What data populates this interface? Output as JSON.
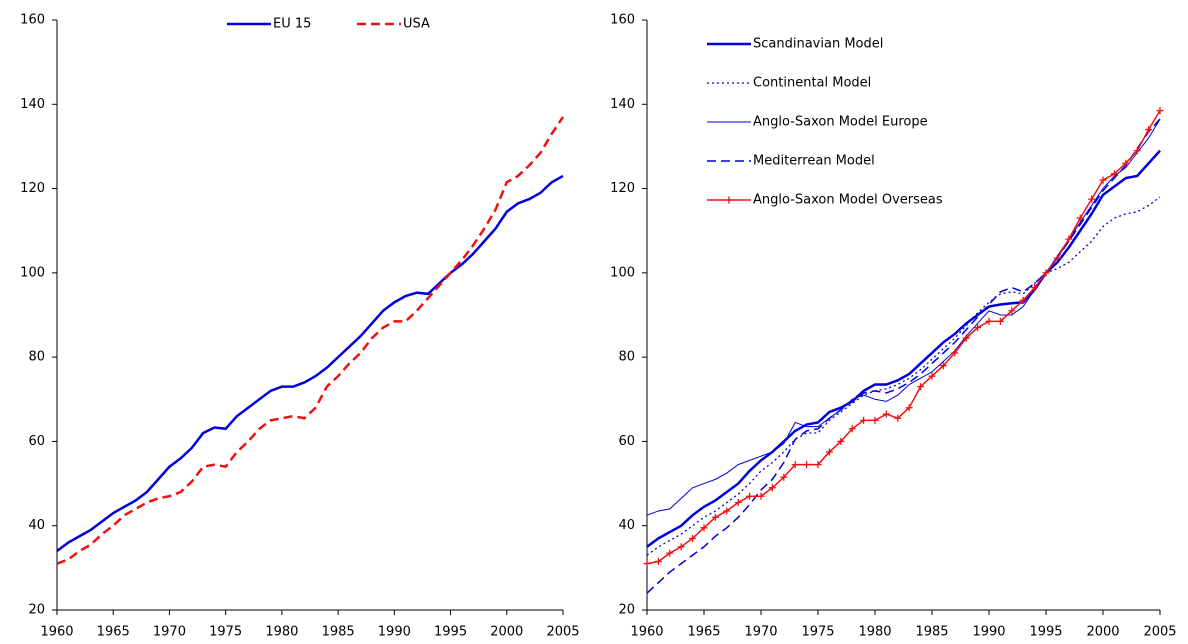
{
  "chart_data": [
    {
      "type": "line",
      "x": [
        1960,
        1961,
        1962,
        1963,
        1964,
        1965,
        1966,
        1967,
        1968,
        1969,
        1970,
        1971,
        1972,
        1973,
        1974,
        1975,
        1976,
        1977,
        1978,
        1979,
        1980,
        1981,
        1982,
        1983,
        1984,
        1985,
        1986,
        1987,
        1988,
        1989,
        1990,
        1991,
        1992,
        1993,
        1994,
        1995,
        1996,
        1997,
        1998,
        1999,
        2000,
        2001,
        2002,
        2003,
        2004,
        2005
      ],
      "xlim": [
        1960,
        2005
      ],
      "xticks": [
        1960,
        1965,
        1970,
        1975,
        1980,
        1985,
        1990,
        1995,
        2000,
        2005
      ],
      "ylim": [
        20,
        160
      ],
      "yticks": [
        20,
        40,
        60,
        80,
        100,
        120,
        140,
        160
      ],
      "legend": "top-center",
      "series": [
        {
          "name": "EU 15",
          "color": "#0000dd",
          "width": 2.5,
          "dash": "solid",
          "values": [
            34,
            36,
            37.5,
            39,
            41,
            43,
            44.5,
            46,
            48,
            51,
            54,
            56,
            58.5,
            62,
            63.3,
            63,
            66,
            68,
            70,
            72,
            73,
            73,
            74,
            75.5,
            77.5,
            80,
            82.5,
            85,
            88,
            91,
            93,
            94.5,
            95.3,
            95,
            97.5,
            100,
            102,
            104.5,
            107.5,
            110.5,
            114.5,
            116.5,
            117.5,
            119,
            121.5,
            123
          ]
        },
        {
          "name": "USA",
          "color": "#ee1111",
          "width": 2.5,
          "dash": "dashed",
          "values": [
            31,
            32,
            34,
            35.5,
            38,
            40,
            42.5,
            44,
            45.5,
            46.5,
            47,
            48,
            50.5,
            54,
            54.5,
            54,
            57.5,
            60,
            63,
            65,
            65.5,
            66,
            65.5,
            68,
            73,
            75.5,
            78.5,
            81,
            84.5,
            87,
            88.5,
            88.5,
            91,
            94,
            97,
            100,
            103,
            106.5,
            110.5,
            115,
            121.5,
            123,
            125.5,
            128.5,
            133,
            137
          ]
        }
      ]
    },
    {
      "type": "line",
      "x": [
        1960,
        1961,
        1962,
        1963,
        1964,
        1965,
        1966,
        1967,
        1968,
        1969,
        1970,
        1971,
        1972,
        1973,
        1974,
        1975,
        1976,
        1977,
        1978,
        1979,
        1980,
        1981,
        1982,
        1983,
        1984,
        1985,
        1986,
        1987,
        1988,
        1989,
        1990,
        1991,
        1992,
        1993,
        1994,
        1995,
        1996,
        1997,
        1998,
        1999,
        2000,
        2001,
        2002,
        2003,
        2004,
        2005
      ],
      "xlim": [
        1960,
        2005
      ],
      "xticks": [
        1960,
        1965,
        1970,
        1975,
        1980,
        1985,
        1990,
        1995,
        2000,
        2005
      ],
      "ylim": [
        20,
        160
      ],
      "yticks": [
        20,
        40,
        60,
        80,
        100,
        120,
        140,
        160
      ],
      "legend": "top-left",
      "series": [
        {
          "name": "Scandinavian Model",
          "color": "#0000dd",
          "width": 2.5,
          "dash": "solid",
          "values": [
            35,
            37,
            38.5,
            40,
            42.5,
            44.5,
            46,
            48,
            50,
            53,
            55.5,
            57.5,
            60,
            62.5,
            64,
            64.5,
            67,
            68,
            69.5,
            72,
            73.5,
            73.5,
            74.5,
            76,
            78.5,
            81,
            83.5,
            85.5,
            88,
            90,
            92,
            92.5,
            92.8,
            93,
            96,
            100,
            102.5,
            106,
            110,
            114,
            118.5,
            120.5,
            122.5,
            123,
            126,
            129
          ]
        },
        {
          "name": "Continental Model",
          "color": "#0000dd",
          "width": 1.3,
          "dash": "dotted",
          "values": [
            33,
            35,
            36.5,
            38,
            40,
            42,
            43.5,
            45.5,
            47.5,
            50,
            53,
            55,
            57.5,
            60.5,
            62,
            62,
            65,
            67,
            69,
            71,
            72,
            72.5,
            73.5,
            75,
            77,
            79.5,
            82,
            84.5,
            87.5,
            90.5,
            93,
            95,
            95.5,
            95,
            97.5,
            100,
            101,
            102.5,
            105,
            107.5,
            111,
            113,
            114,
            114.5,
            116,
            118
          ]
        },
        {
          "name": "Anglo-Saxon Model Europe",
          "color": "#0000dd",
          "width": 1,
          "dash": "solid",
          "values": [
            42.5,
            43.5,
            44,
            46.5,
            49,
            50,
            51,
            52.5,
            54.5,
            55.5,
            56.5,
            57.5,
            59.5,
            64.5,
            63.5,
            63.5,
            65.5,
            67.5,
            70,
            71,
            70,
            69.5,
            71,
            73.5,
            75,
            76.5,
            79,
            81.5,
            85,
            88,
            91,
            90,
            90,
            92,
            96,
            100,
            104,
            108,
            112,
            116,
            120,
            123,
            125,
            128.5,
            132,
            136.5
          ]
        },
        {
          "name": "Mediterrean Model",
          "color": "#0000dd",
          "width": 1.5,
          "dash": "dashed",
          "values": [
            24,
            26.5,
            29,
            31,
            33,
            35,
            37.5,
            39.5,
            42,
            45,
            48.5,
            51,
            55,
            60.5,
            62.5,
            63,
            65.5,
            67.5,
            69.5,
            71.5,
            72,
            71.5,
            72.5,
            74,
            76,
            78.5,
            81,
            83.5,
            86.5,
            89.5,
            92.5,
            95.5,
            96.5,
            95.5,
            97.5,
            100,
            103.5,
            107.5,
            111.5,
            115.5,
            119.5,
            122.5,
            125.5,
            129.5,
            133.5,
            136.5
          ]
        },
        {
          "name": "Anglo-Saxon Model Overseas",
          "color": "#ee1111",
          "width": 1.5,
          "dash": "solid",
          "marker": "plus",
          "values": [
            31,
            31.5,
            33.5,
            35,
            37,
            39.5,
            42,
            43.5,
            45.5,
            47,
            47,
            49,
            51.5,
            54.5,
            54.5,
            54.5,
            57.5,
            60,
            63,
            65,
            65,
            66.5,
            65.5,
            68,
            73,
            75.5,
            78,
            81,
            84.5,
            87,
            88.5,
            88.5,
            91,
            93.5,
            96.5,
            100,
            103.5,
            108,
            113,
            117.5,
            122,
            123.5,
            126,
            129,
            134,
            138.5
          ]
        }
      ]
    }
  ]
}
